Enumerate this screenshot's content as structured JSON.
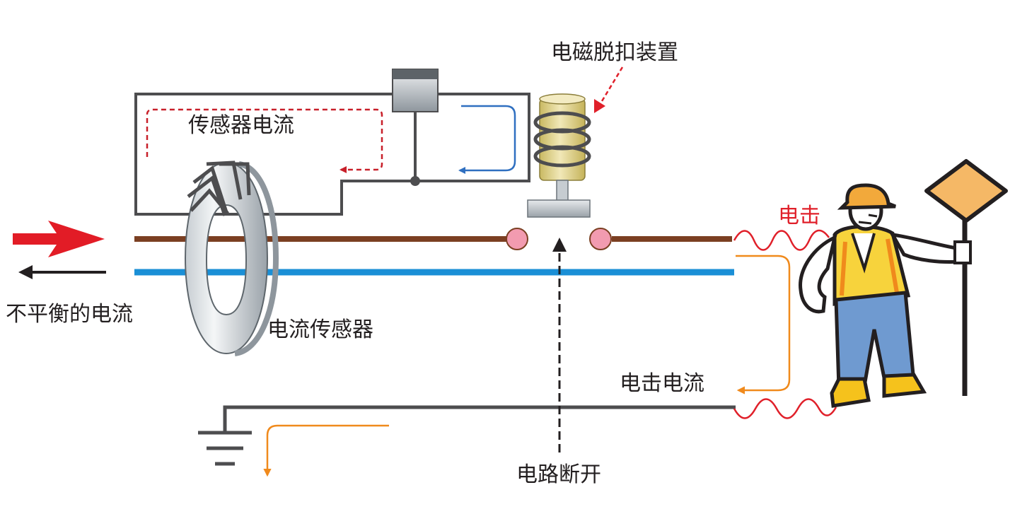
{
  "labels": {
    "relay": "电磁脱扣装置",
    "sensor_current": "传感器电流",
    "unbalanced_current": "不平衡的电流",
    "current_sensor": "电流传感器",
    "shock": "电击",
    "shock_current": "电击电流",
    "circuit_break": "电路断开"
  },
  "colors": {
    "live_wire": "#7b3f22",
    "neutral_wire": "#1a8fd6",
    "ground_wire": "#4d4d4f",
    "control_wire": "#4d4d4f",
    "sensor_current_arrow": "#c8202a",
    "loop_current_arrow": "#2f6fc0",
    "shock_current_arrow": "#f08a1c",
    "shock_wave": "#e0202a",
    "contact": "#f29bb0",
    "coil_core": "#e2d597",
    "sign": "#f5b866",
    "helmet": "#f2a93b",
    "vest": "#f7d33c",
    "trousers": "#6f9ad0",
    "boots": "#f5c21c"
  }
}
